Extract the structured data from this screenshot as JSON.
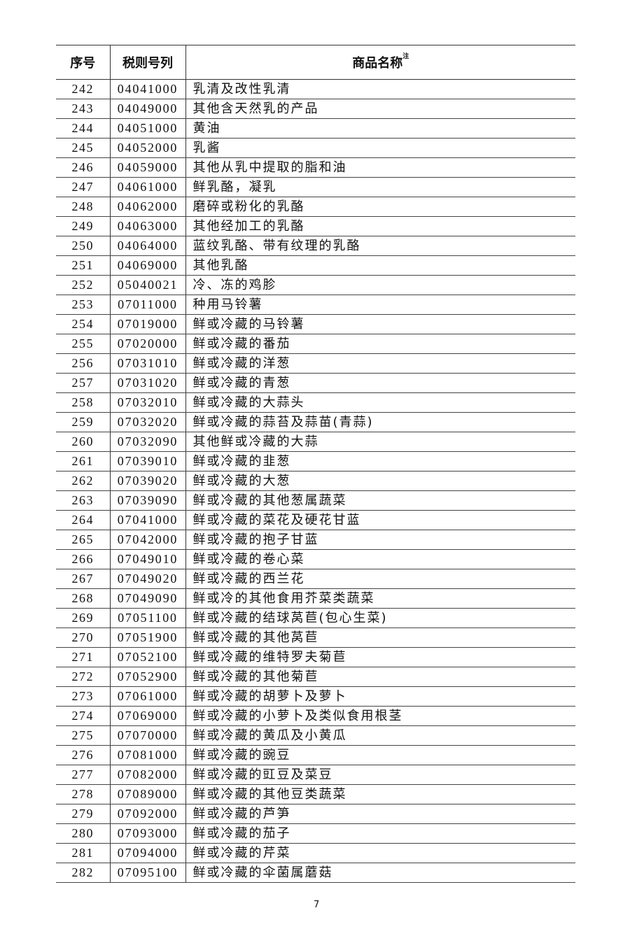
{
  "table": {
    "headers": {
      "seq": "序号",
      "code": "税则号列",
      "name": "商品名称",
      "name_note": "注"
    },
    "rows": [
      [
        "242",
        "04041000",
        "乳清及改性乳清"
      ],
      [
        "243",
        "04049000",
        "其他含天然乳的产品"
      ],
      [
        "244",
        "04051000",
        "黄油"
      ],
      [
        "245",
        "04052000",
        "乳酱"
      ],
      [
        "246",
        "04059000",
        "其他从乳中提取的脂和油"
      ],
      [
        "247",
        "04061000",
        "鲜乳酪，凝乳"
      ],
      [
        "248",
        "04062000",
        "磨碎或粉化的乳酪"
      ],
      [
        "249",
        "04063000",
        "其他经加工的乳酪"
      ],
      [
        "250",
        "04064000",
        "蓝纹乳酪、带有纹理的乳酪"
      ],
      [
        "251",
        "04069000",
        "其他乳酪"
      ],
      [
        "252",
        "05040021",
        "冷、冻的鸡胗"
      ],
      [
        "253",
        "07011000",
        "种用马铃薯"
      ],
      [
        "254",
        "07019000",
        "鲜或冷藏的马铃薯"
      ],
      [
        "255",
        "07020000",
        "鲜或冷藏的番茄"
      ],
      [
        "256",
        "07031010",
        "鲜或冷藏的洋葱"
      ],
      [
        "257",
        "07031020",
        "鲜或冷藏的青葱"
      ],
      [
        "258",
        "07032010",
        "鲜或冷藏的大蒜头"
      ],
      [
        "259",
        "07032020",
        "鲜或冷藏的蒜苔及蒜苗(青蒜)"
      ],
      [
        "260",
        "07032090",
        "其他鲜或冷藏的大蒜"
      ],
      [
        "261",
        "07039010",
        "鲜或冷藏的韭葱"
      ],
      [
        "262",
        "07039020",
        "鲜或冷藏的大葱"
      ],
      [
        "263",
        "07039090",
        "鲜或冷藏的其他葱属蔬菜"
      ],
      [
        "264",
        "07041000",
        "鲜或冷藏的菜花及硬花甘蓝"
      ],
      [
        "265",
        "07042000",
        "鲜或冷藏的抱子甘蓝"
      ],
      [
        "266",
        "07049010",
        "鲜或冷藏的卷心菜"
      ],
      [
        "267",
        "07049020",
        "鲜或冷藏的西兰花"
      ],
      [
        "268",
        "07049090",
        "鲜或冷的其他食用芥菜类蔬菜"
      ],
      [
        "269",
        "07051100",
        "鲜或冷藏的结球莴苣(包心生菜)"
      ],
      [
        "270",
        "07051900",
        "鲜或冷藏的其他莴苣"
      ],
      [
        "271",
        "07052100",
        "鲜或冷藏的维特罗夫菊苣"
      ],
      [
        "272",
        "07052900",
        "鲜或冷藏的其他菊苣"
      ],
      [
        "273",
        "07061000",
        "鲜或冷藏的胡萝卜及萝卜"
      ],
      [
        "274",
        "07069000",
        "鲜或冷藏的小萝卜及类似食用根茎"
      ],
      [
        "275",
        "07070000",
        "鲜或冷藏的黄瓜及小黄瓜"
      ],
      [
        "276",
        "07081000",
        "鲜或冷藏的豌豆"
      ],
      [
        "277",
        "07082000",
        "鲜或冷藏的豇豆及菜豆"
      ],
      [
        "278",
        "07089000",
        "鲜或冷藏的其他豆类蔬菜"
      ],
      [
        "279",
        "07092000",
        "鲜或冷藏的芦笋"
      ],
      [
        "280",
        "07093000",
        "鲜或冷藏的茄子"
      ],
      [
        "281",
        "07094000",
        "鲜或冷藏的芹菜"
      ],
      [
        "282",
        "07095100",
        "鲜或冷藏的伞菌属蘑菇"
      ]
    ]
  },
  "footer": {
    "page_number": "7"
  }
}
